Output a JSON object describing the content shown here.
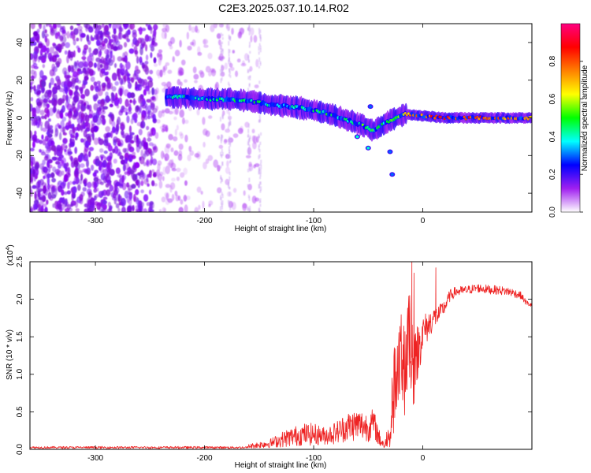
{
  "title": "C2E3.2025.037.10.14.R02",
  "colors": {
    "snr_line": "#ee2222",
    "spectrogram_noise": "#8a2be2",
    "background": "#ffffff",
    "axis": "#000000"
  },
  "chart_data": [
    {
      "type": "heatmap",
      "xlabel": "Height of straight line (km)",
      "ylabel": "Frequency (Hz)",
      "xlim": [
        -360,
        100
      ],
      "ylim": [
        -50,
        50
      ],
      "xticks": [
        -300,
        -200,
        -100,
        0
      ],
      "yticks": [
        -40,
        -20,
        0,
        20,
        40
      ],
      "colorbar": {
        "label": "Normalized spectral amplitude",
        "range": [
          0.0,
          1.0
        ],
        "ticks": [
          "0.0",
          "0.2",
          "0.4",
          "0.6",
          "0.8"
        ],
        "colormap": [
          "#ffffff",
          "#a020f0",
          "#0000ff",
          "#00ffff",
          "#00ff00",
          "#ffff00",
          "#ff8000",
          "#ff0000",
          "#ff0080"
        ]
      },
      "noise_region": {
        "x_from": -360,
        "x_to": -150,
        "amplitude": 0.1
      },
      "ridge": [
        {
          "x": -235,
          "f": 11,
          "amp": 0.35
        },
        {
          "x": -220,
          "f": 11,
          "amp": 0.4
        },
        {
          "x": -200,
          "f": 10,
          "amp": 0.45
        },
        {
          "x": -180,
          "f": 10,
          "amp": 0.45
        },
        {
          "x": -160,
          "f": 9,
          "amp": 0.45
        },
        {
          "x": -140,
          "f": 7,
          "amp": 0.4
        },
        {
          "x": -120,
          "f": 6,
          "amp": 0.4
        },
        {
          "x": -100,
          "f": 4,
          "amp": 0.45
        },
        {
          "x": -85,
          "f": 2,
          "amp": 0.45
        },
        {
          "x": -70,
          "f": -1,
          "amp": 0.45
        },
        {
          "x": -55,
          "f": -4,
          "amp": 0.5
        },
        {
          "x": -45,
          "f": -7,
          "amp": 0.5
        },
        {
          "x": -35,
          "f": -3,
          "amp": 0.45
        },
        {
          "x": -25,
          "f": 0,
          "amp": 0.5
        },
        {
          "x": -15,
          "f": 2,
          "amp": 0.7
        },
        {
          "x": 0,
          "f": 1,
          "amp": 0.8
        },
        {
          "x": 20,
          "f": 0,
          "amp": 0.85
        },
        {
          "x": 50,
          "f": 0,
          "amp": 0.8
        },
        {
          "x": 80,
          "f": 0,
          "amp": 0.75
        },
        {
          "x": 100,
          "f": 0,
          "amp": 0.7
        }
      ],
      "branches": [
        {
          "x": -60,
          "f": -10,
          "amp": 0.4
        },
        {
          "x": -50,
          "f": -16,
          "amp": 0.4
        },
        {
          "x": -30,
          "f": -18,
          "amp": 0.3
        },
        {
          "x": -28,
          "f": -30,
          "amp": 0.3
        },
        {
          "x": -48,
          "f": 6,
          "amp": 0.3
        }
      ]
    },
    {
      "type": "line",
      "xlabel": "Height of straight line (km)",
      "ylabel": "SNR (10 * v/v)",
      "scale_label": "(x10",
      "scale_exponent": "4",
      "scale_close": ")",
      "xlim": [
        -360,
        100
      ],
      "ylim": [
        0,
        2.5
      ],
      "xticks": [
        -300,
        -200,
        -100,
        0
      ],
      "yticks": [
        "0.0",
        "0.5",
        "1.0",
        "1.5",
        "2.0",
        "2.5"
      ],
      "series": [
        {
          "x": [
            -360,
            -250,
            -180,
            -160,
            -140,
            -125,
            -110,
            -100,
            -90,
            -80,
            -70,
            -60,
            -50,
            -45,
            -40,
            -35,
            -30,
            -28,
            -25,
            -20,
            -15,
            -12,
            -8,
            -5,
            0,
            5,
            10,
            15,
            20,
            25,
            30,
            40,
            50,
            60,
            70,
            80,
            90,
            95,
            100
          ],
          "y": [
            0.01,
            0.02,
            0.03,
            0.04,
            0.08,
            0.15,
            0.2,
            0.2,
            0.18,
            0.22,
            0.3,
            0.33,
            0.3,
            0.35,
            0.15,
            0.05,
            0.3,
            0.7,
            1.0,
            1.2,
            1.25,
            1.45,
            1.3,
            1.3,
            1.55,
            1.65,
            1.75,
            1.8,
            1.9,
            2.05,
            2.1,
            2.12,
            2.15,
            2.13,
            2.12,
            2.1,
            2.05,
            1.95,
            1.92
          ],
          "noise": [
            0.01,
            0.02,
            0.02,
            0.03,
            0.06,
            0.12,
            0.15,
            0.15,
            0.12,
            0.15,
            0.2,
            0.22,
            0.2,
            0.2,
            0.12,
            0.05,
            0.25,
            0.45,
            0.55,
            0.6,
            0.6,
            0.7,
            0.5,
            0.4,
            0.25,
            0.2,
            0.15,
            0.12,
            0.1,
            0.08,
            0.07,
            0.06,
            0.06,
            0.06,
            0.06,
            0.06,
            0.05,
            0.04,
            0.03
          ],
          "peaks": [
            {
              "x": -10,
              "y": 2.5
            },
            {
              "x": -8,
              "y": 2.35
            },
            {
              "x": -12,
              "y": 2.05
            },
            {
              "x": 12,
              "y": 2.42
            }
          ]
        }
      ]
    }
  ]
}
